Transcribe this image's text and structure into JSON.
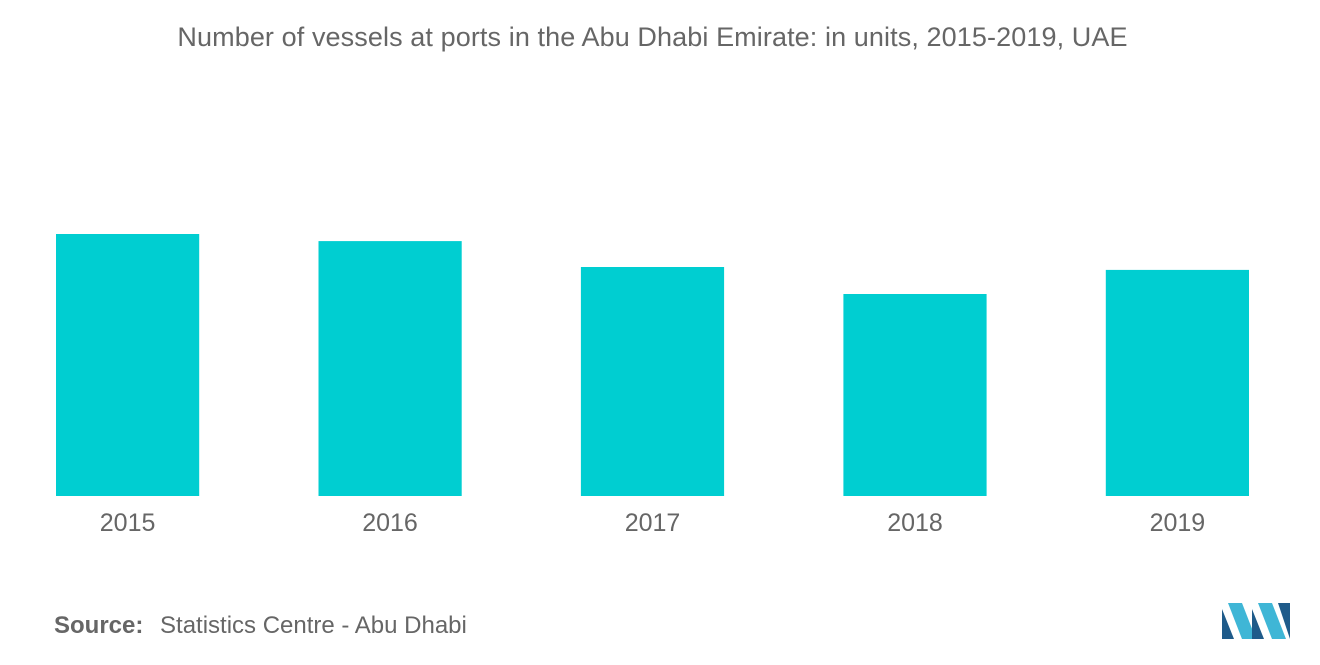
{
  "chart_data": {
    "type": "bar",
    "title": "Number of vessels at ports in the Abu Dhabi Emirate: in units, 2015-2019, UAE",
    "categories": [
      "2015",
      "2016",
      "2017",
      "2018",
      "2019"
    ],
    "values": [
      100,
      97.3,
      87.4,
      77.1,
      86.3
    ],
    "ylim": [
      0,
      100
    ],
    "xlabel": "",
    "ylabel": "",
    "grid": false,
    "legend": "none",
    "bar_color": "#00CED1"
  },
  "source": {
    "label": "Source:",
    "text": "Statistics Centre - Abu Dhabi"
  },
  "colors": {
    "bar": "#00CED1",
    "text": "#666666",
    "logo_dark": "#1f5b8a",
    "logo_light": "#3fb6d6"
  },
  "logo": {
    "icon": "mordor-logo-icon"
  }
}
